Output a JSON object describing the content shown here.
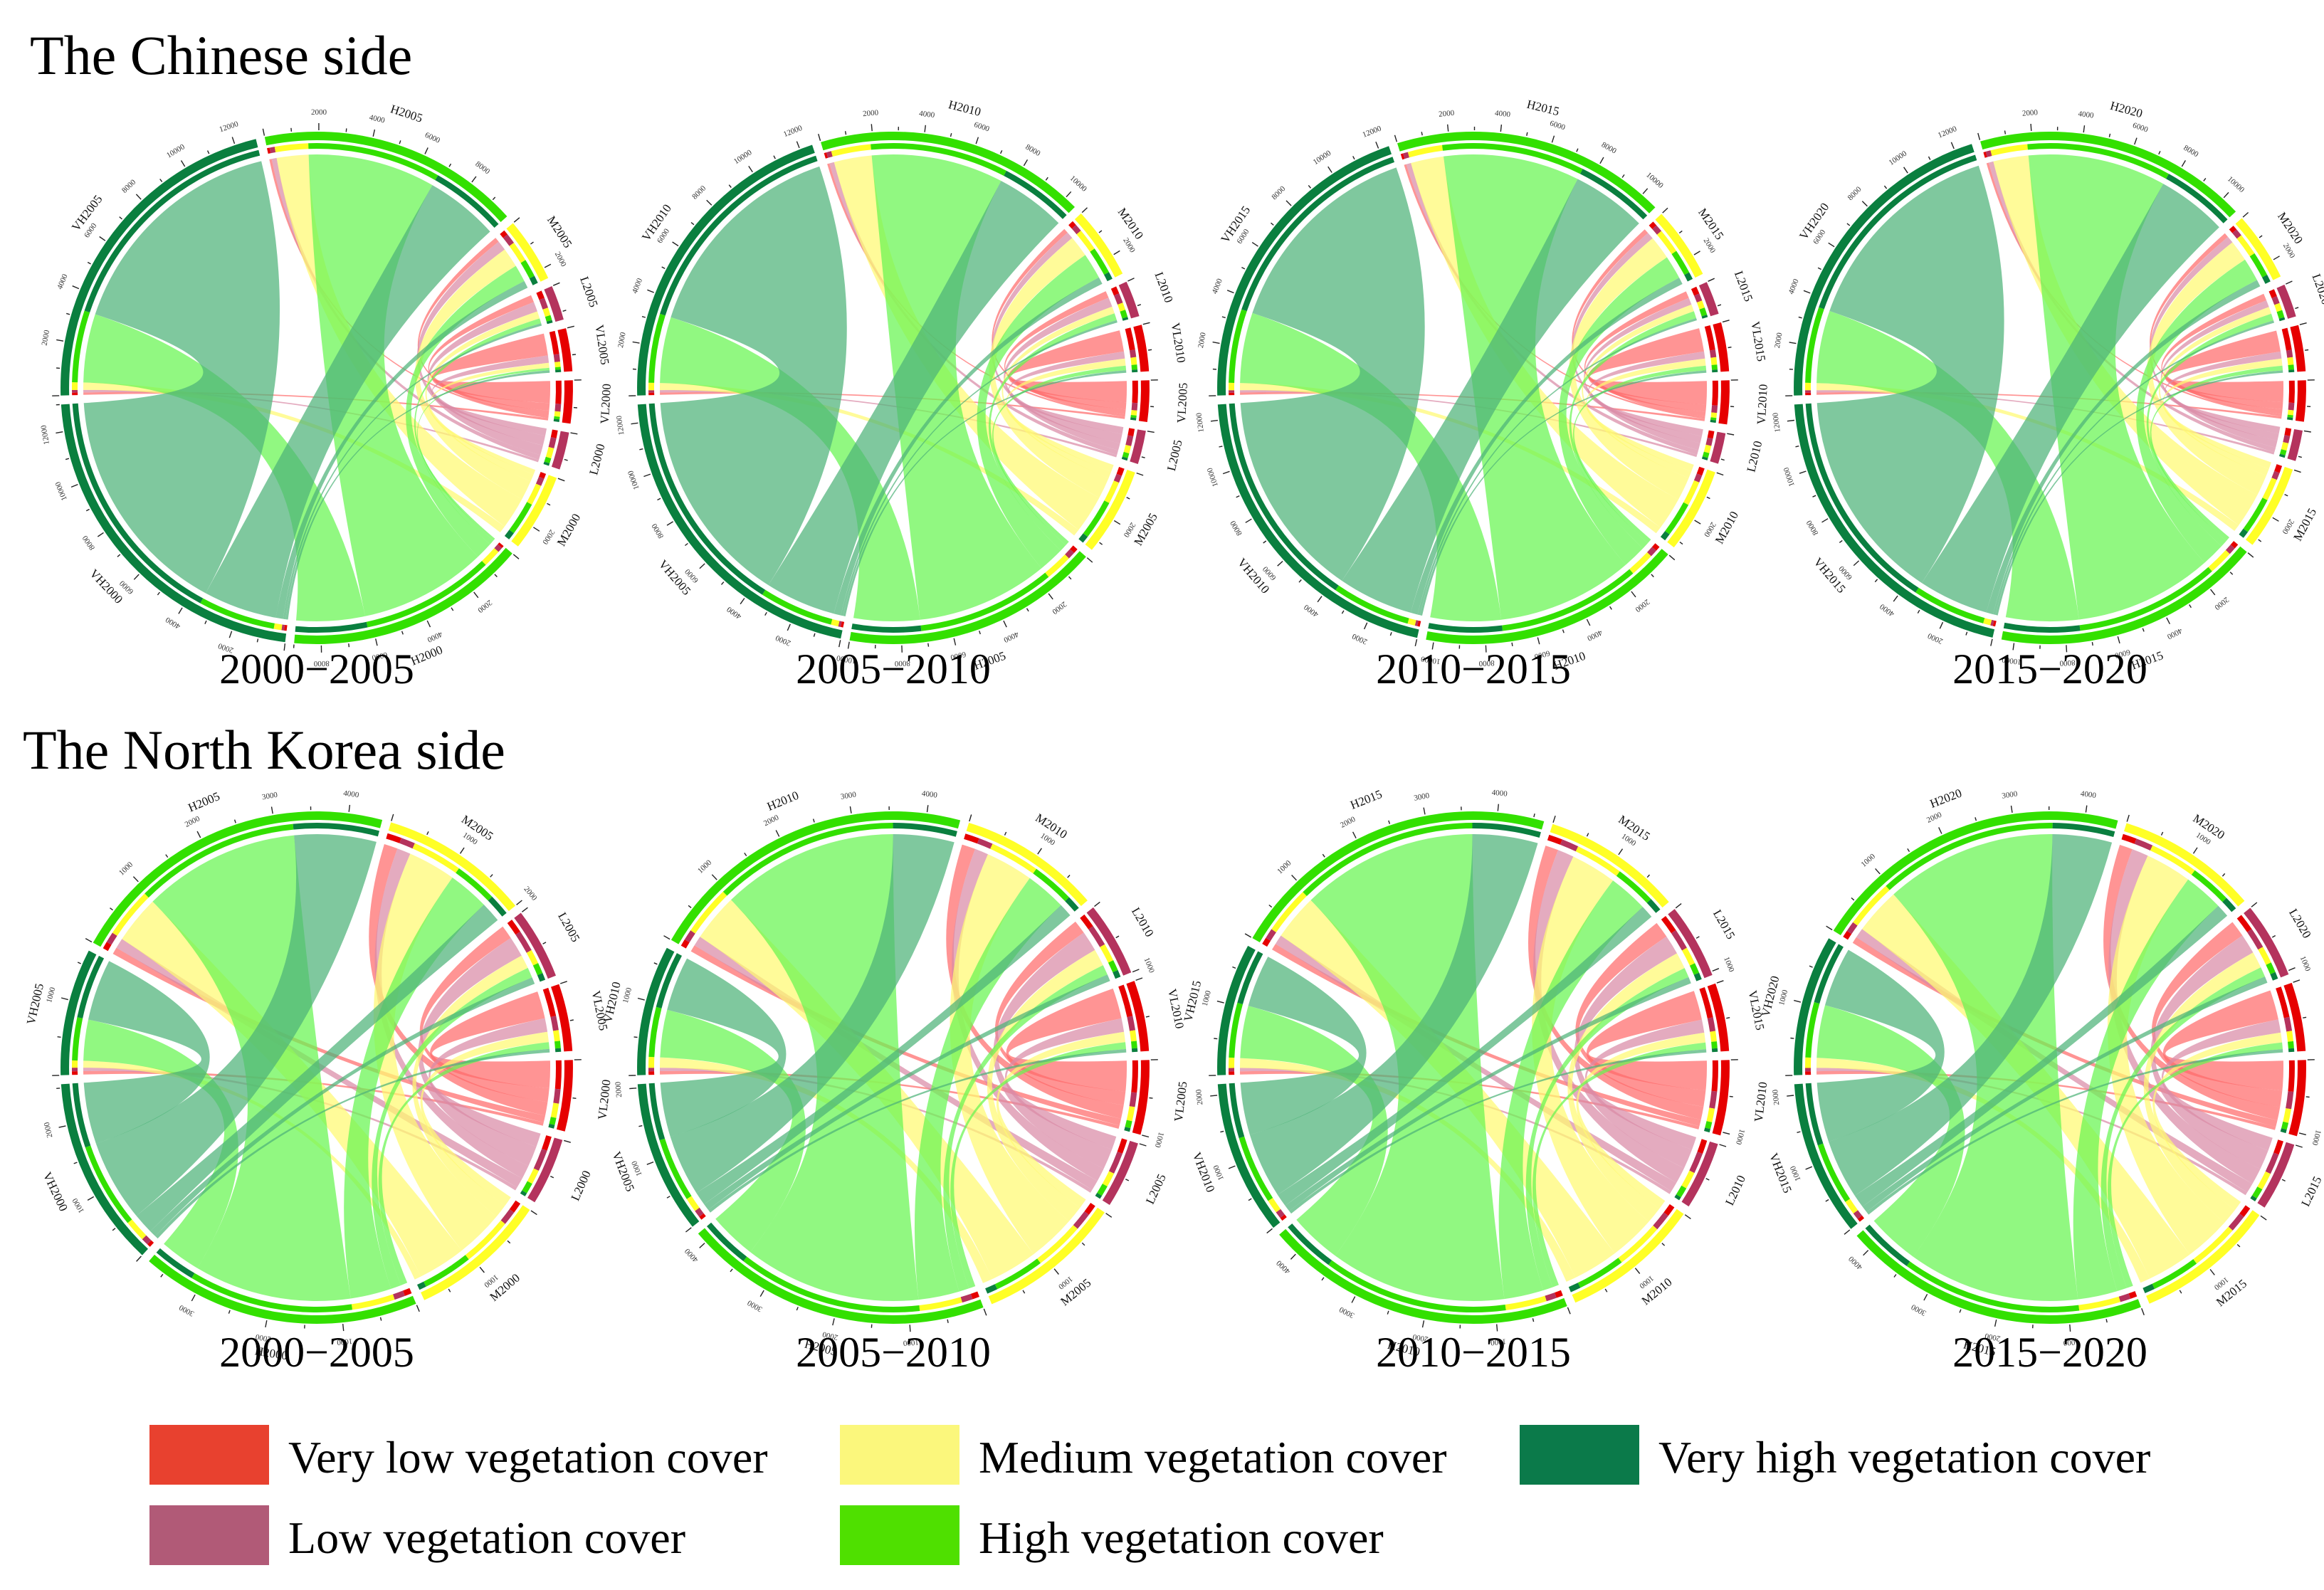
{
  "figure": {
    "sections": [
      {
        "title": "The Chinese side"
      },
      {
        "title": "The North Korea side"
      }
    ],
    "legend": [
      {
        "label": "Very low vegetation cover",
        "color": "#e8412f"
      },
      {
        "label": "Medium vegetation cover",
        "color": "#fbf77c"
      },
      {
        "label": "Very high vegetation cover",
        "color": "#0b7a4a"
      },
      {
        "label": "Low vegetation cover",
        "color": "#b15a77"
      },
      {
        "label": "High vegetation cover",
        "color": "#4fe000"
      }
    ]
  },
  "palette": {
    "VL": {
      "arc": "#e60000",
      "chord": "#ff6b6b"
    },
    "L": {
      "arc": "#b4335d",
      "chord": "#d98aa6"
    },
    "M": {
      "arc": "#ffff26",
      "chord": "#fffa72"
    },
    "H": {
      "arc": "#33e000",
      "chord": "#66f550"
    },
    "VH": {
      "arc": "#0a7f3f",
      "chord": "#4db378"
    }
  },
  "chart_data": [
    {
      "type": "chord",
      "region": "The Chinese side",
      "period": "2000−2005",
      "classes": [
        "VL",
        "L",
        "M",
        "H",
        "VH"
      ],
      "from_labels": [
        "VL2000",
        "L2000",
        "M2000",
        "H2000",
        "VH2000"
      ],
      "to_labels": [
        "VL2005",
        "L2005",
        "M2005",
        "H2005",
        "VH2005"
      ],
      "matrix": [
        [
          900,
          300,
          200,
          100,
          100
        ],
        [
          300,
          400,
          400,
          200,
          100
        ],
        [
          200,
          300,
          800,
          1300,
          300
        ],
        [
          100,
          200,
          700,
          5200,
          2800
        ],
        [
          100,
          100,
          300,
          3000,
          9500
        ]
      ]
    },
    {
      "type": "chord",
      "region": "The Chinese side",
      "period": "2005−2010",
      "classes": [
        "VL",
        "L",
        "M",
        "H",
        "VH"
      ],
      "from_labels": [
        "VL2005",
        "L2005",
        "M2005",
        "H2005",
        "VH2005"
      ],
      "to_labels": [
        "VL2010",
        "L2010",
        "M2010",
        "H2010",
        "VH2010"
      ],
      "matrix": [
        [
          900,
          300,
          200,
          100,
          100
        ],
        [
          300,
          400,
          300,
          200,
          100
        ],
        [
          300,
          300,
          900,
          1600,
          300
        ],
        [
          200,
          300,
          1100,
          5600,
          2800
        ],
        [
          100,
          100,
          300,
          3000,
          9200
        ]
      ]
    },
    {
      "type": "chord",
      "region": "The Chinese side",
      "period": "2010−2015",
      "classes": [
        "VL",
        "L",
        "M",
        "H",
        "VH"
      ],
      "from_labels": [
        "VL2010",
        "L2010",
        "M2010",
        "H2010",
        "VH2010"
      ],
      "to_labels": [
        "VL2015",
        "L2015",
        "M2015",
        "H2015",
        "VH2015"
      ],
      "matrix": [
        [
          1000,
          300,
          200,
          100,
          100
        ],
        [
          300,
          300,
          300,
          200,
          100
        ],
        [
          300,
          300,
          1000,
          1400,
          300
        ],
        [
          200,
          300,
          1000,
          5800,
          3000
        ],
        [
          100,
          100,
          300,
          3200,
          8900
        ]
      ]
    },
    {
      "type": "chord",
      "region": "The Chinese side",
      "period": "2015−2020",
      "classes": [
        "VL",
        "L",
        "M",
        "H",
        "VH"
      ],
      "from_labels": [
        "VL2015",
        "L2015",
        "M2015",
        "H2015",
        "VH2015"
      ],
      "to_labels": [
        "VL2020",
        "L2020",
        "M2020",
        "H2020",
        "VH2020"
      ],
      "matrix": [
        [
          900,
          300,
          200,
          100,
          100
        ],
        [
          300,
          300,
          300,
          200,
          100
        ],
        [
          300,
          300,
          900,
          1500,
          300
        ],
        [
          200,
          300,
          1000,
          5900,
          3100
        ],
        [
          100,
          100,
          300,
          3000,
          9100
        ]
      ]
    },
    {
      "type": "chord",
      "region": "The North Korea side",
      "period": "2000−2005",
      "classes": [
        "VL",
        "L",
        "M",
        "H",
        "VH"
      ],
      "from_labels": [
        "VL2000",
        "L2000",
        "M2000",
        "H2000",
        "VH2000"
      ],
      "to_labels": [
        "VL2005",
        "L2005",
        "M2005",
        "H2005",
        "VH2005"
      ],
      "matrix": [
        [
          400,
          200,
          200,
          100,
          50
        ],
        [
          200,
          300,
          200,
          150,
          50
        ],
        [
          150,
          200,
          700,
          700,
          100
        ],
        [
          100,
          150,
          600,
          2300,
          600
        ],
        [
          50,
          100,
          300,
          1200,
          900
        ]
      ]
    },
    {
      "type": "chord",
      "region": "The North Korea side",
      "period": "2005−2010",
      "classes": [
        "VL",
        "L",
        "M",
        "H",
        "VH"
      ],
      "from_labels": [
        "VL2005",
        "L2005",
        "M2005",
        "H2005",
        "VH2005"
      ],
      "to_labels": [
        "VL2010",
        "L2010",
        "M2010",
        "H2010",
        "VH2010"
      ],
      "matrix": [
        [
          450,
          200,
          200,
          100,
          50
        ],
        [
          200,
          300,
          200,
          150,
          50
        ],
        [
          150,
          250,
          700,
          700,
          150
        ],
        [
          100,
          150,
          600,
          2600,
          700
        ],
        [
          50,
          100,
          200,
          900,
          800
        ]
      ]
    },
    {
      "type": "chord",
      "region": "The North Korea side",
      "period": "2010−2015",
      "classes": [
        "VL",
        "L",
        "M",
        "H",
        "VH"
      ],
      "from_labels": [
        "VL2010",
        "L2010",
        "M2010",
        "H2010",
        "VH2010"
      ],
      "to_labels": [
        "VL2015",
        "L2015",
        "M2015",
        "H2015",
        "VH2015"
      ],
      "matrix": [
        [
          450,
          250,
          200,
          100,
          50
        ],
        [
          200,
          300,
          250,
          150,
          50
        ],
        [
          150,
          250,
          700,
          700,
          150
        ],
        [
          100,
          150,
          600,
          2700,
          800
        ],
        [
          50,
          100,
          200,
          1000,
          800
        ]
      ]
    },
    {
      "type": "chord",
      "region": "The North Korea side",
      "period": "2015−2020",
      "classes": [
        "VL",
        "L",
        "M",
        "H",
        "VH"
      ],
      "from_labels": [
        "VL2015",
        "L2015",
        "M2015",
        "H2015",
        "VH2015"
      ],
      "to_labels": [
        "VL2020",
        "L2020",
        "M2020",
        "H2020",
        "VH2020"
      ],
      "matrix": [
        [
          450,
          250,
          200,
          100,
          50
        ],
        [
          200,
          300,
          250,
          150,
          50
        ],
        [
          150,
          250,
          700,
          700,
          150
        ],
        [
          100,
          150,
          600,
          2600,
          800
        ],
        [
          50,
          100,
          200,
          900,
          900
        ]
      ]
    }
  ]
}
